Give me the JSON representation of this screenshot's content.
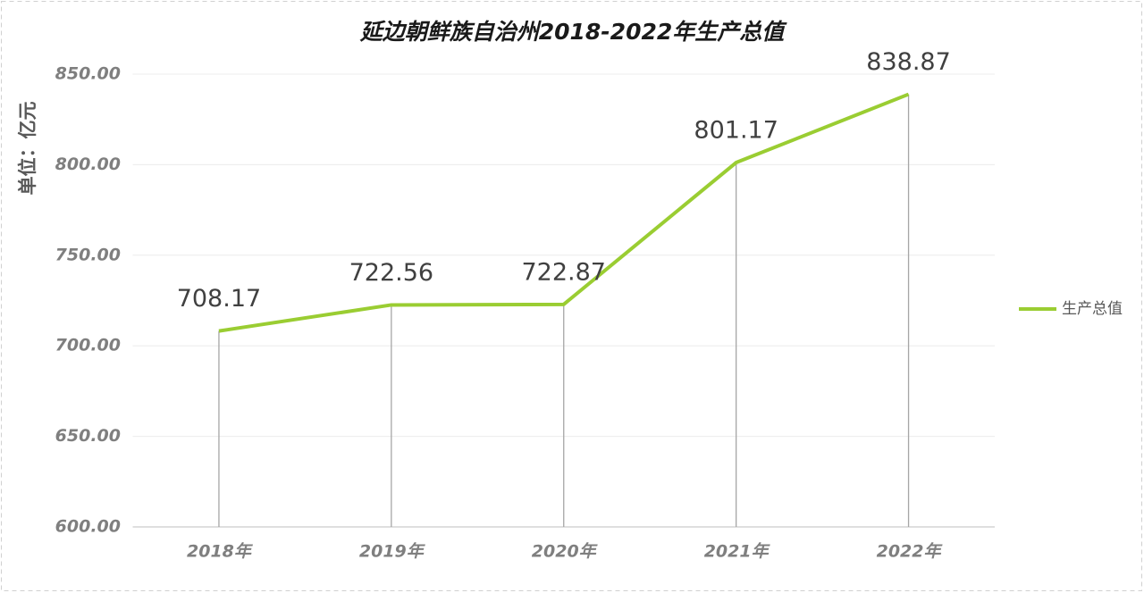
{
  "chart_data": {
    "type": "line",
    "title": "延边朝鲜族自治州2018-2022年生产总值",
    "y_label": "单位：亿元",
    "categories": [
      "2018年",
      "2019年",
      "2020年",
      "2021年",
      "2022年"
    ],
    "series": [
      {
        "name": "生产总值",
        "color": "#9acd32",
        "values": [
          708.17,
          722.56,
          722.87,
          801.17,
          838.87
        ]
      }
    ],
    "ylim": [
      600,
      850
    ],
    "yticks": [
      {
        "value": 600,
        "label": "600.00"
      },
      {
        "value": 650,
        "label": "650.00"
      },
      {
        "value": 700,
        "label": "700.00"
      },
      {
        "value": 750,
        "label": "750.00"
      },
      {
        "value": 800,
        "label": "800.00"
      },
      {
        "value": 850,
        "label": "850.00"
      }
    ],
    "grid": true,
    "legend": "right"
  }
}
